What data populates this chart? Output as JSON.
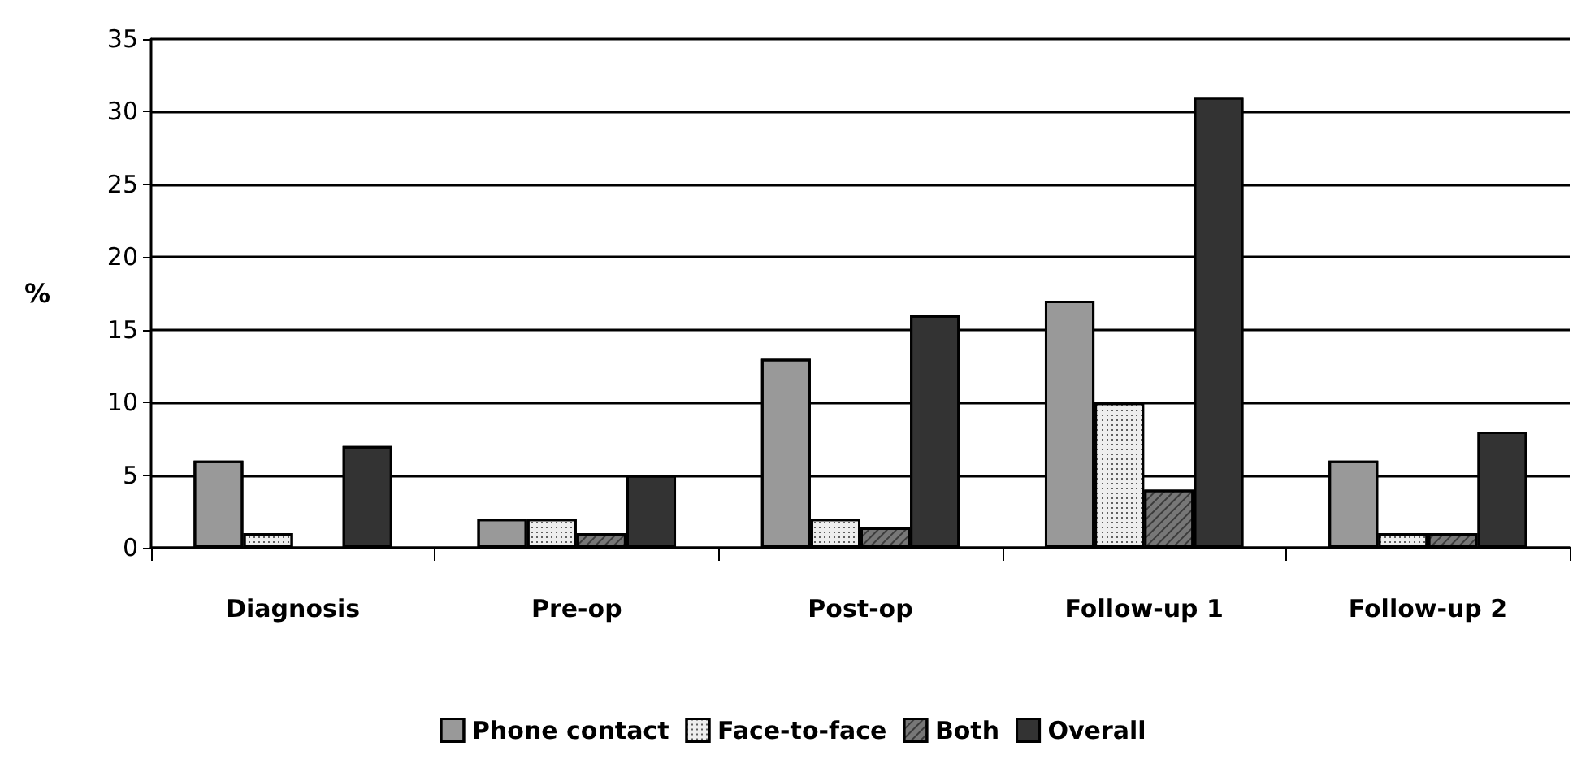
{
  "chart_data": {
    "type": "bar",
    "ylabel": "%",
    "categories": [
      "Diagnosis",
      "Pre-op",
      "Post-op",
      "Follow-up 1",
      "Follow-up 2"
    ],
    "series": [
      {
        "name": "Phone contact",
        "color": "#999999",
        "values": [
          6,
          2,
          13,
          17,
          6
        ]
      },
      {
        "name": "Face-to-face",
        "color": "#eeeeee",
        "values": [
          1,
          2,
          2,
          10,
          1
        ]
      },
      {
        "name": "Both",
        "color": "#777777",
        "values": [
          null,
          1,
          1.4,
          4,
          1
        ]
      },
      {
        "name": "Overall",
        "color": "#333333",
        "values": [
          7,
          5,
          16,
          31,
          8
        ]
      }
    ],
    "ylim": [
      0,
      35
    ],
    "yticks": [
      0,
      5,
      10,
      15,
      20,
      25,
      30,
      35
    ],
    "grid": "y",
    "legend": "bottom"
  }
}
